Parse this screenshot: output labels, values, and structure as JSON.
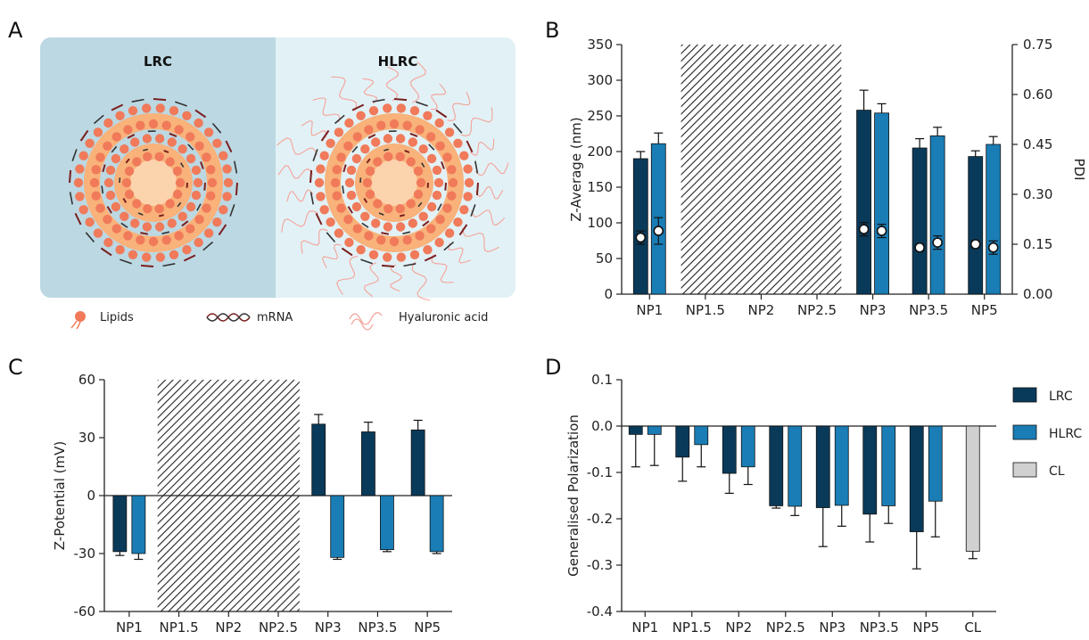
{
  "colors": {
    "LRC": "#0a3a5a",
    "HLRC": "#1a7db5",
    "CL": "#d0d0d0",
    "pdi_marker": "#ffffff",
    "lipid": "#f8b27a",
    "lipid_head": "#f07a5a",
    "mrna": "#7a1f1f",
    "ha": "#f4a39a",
    "panel_left_bg": "#bcd8e3",
    "panel_right_bg": "#e2f1f5"
  },
  "panel_A": {
    "letter": "A",
    "left_title": "LRC",
    "right_title": "HLRC",
    "legend": [
      {
        "icon": "lipid-icon",
        "label": "Lipids"
      },
      {
        "icon": "mrna-icon",
        "label": "mRNA"
      },
      {
        "icon": "hyaluronic-acid-icon",
        "label": "Hyaluronic acid"
      }
    ]
  },
  "panel_B": {
    "letter": "B"
  },
  "panel_C": {
    "letter": "C"
  },
  "panel_D": {
    "letter": "D"
  },
  "legend_D": [
    {
      "name": "LRC",
      "color": "#0a3a5a"
    },
    {
      "name": "HLRC",
      "color": "#1a7db5"
    },
    {
      "name": "CL",
      "color": "#d0d0d0"
    }
  ],
  "chart_data": [
    {
      "panel": "B",
      "type": "bar",
      "categories": [
        "NP1",
        "NP1.5",
        "NP2",
        "NP2.5",
        "NP3",
        "NP3.5",
        "NP5"
      ],
      "ylabel": "Z-Average (nm)",
      "ylim": [
        0,
        350
      ],
      "yticks": [
        "0",
        "50",
        "100",
        "150",
        "200",
        "250",
        "300",
        "350"
      ],
      "y2label": "PDI",
      "y2lim": [
        0,
        0.75
      ],
      "y2ticks": [
        "0.00",
        "0.15",
        "0.30",
        "0.45",
        "0.60",
        "0.75"
      ],
      "hatched_categories": [
        "NP1.5",
        "NP2",
        "NP2.5"
      ],
      "series": [
        {
          "key": "LRC",
          "values": [
            190,
            null,
            null,
            null,
            258,
            205,
            193
          ],
          "errors": [
            10,
            null,
            null,
            null,
            28,
            13,
            8
          ]
        },
        {
          "key": "HLRC",
          "values": [
            211,
            null,
            null,
            null,
            254,
            222,
            210
          ],
          "errors": [
            15,
            null,
            null,
            null,
            13,
            12,
            11
          ]
        }
      ],
      "pdi": [
        {
          "key": "LRC",
          "values": [
            0.17,
            null,
            null,
            null,
            0.195,
            0.14,
            0.15
          ],
          "errors": [
            0.02,
            null,
            null,
            null,
            0.02,
            0.01,
            0.01
          ]
        },
        {
          "key": "HLRC",
          "values": [
            0.19,
            null,
            null,
            null,
            0.19,
            0.155,
            0.14
          ],
          "errors": [
            0.04,
            null,
            null,
            null,
            0.02,
            0.02,
            0.02
          ]
        }
      ]
    },
    {
      "panel": "C",
      "type": "bar",
      "categories": [
        "NP1",
        "NP1.5",
        "NP2",
        "NP2.5",
        "NP3",
        "NP3.5",
        "NP5"
      ],
      "ylabel": "Z-Potential (mV)",
      "ylim": [
        -60,
        60
      ],
      "yticks": [
        "-60",
        "-30",
        "0",
        "30",
        "60"
      ],
      "hatched_categories": [
        "NP1.5",
        "NP2",
        "NP2.5"
      ],
      "series": [
        {
          "key": "LRC",
          "values": [
            -29,
            null,
            null,
            null,
            37,
            33,
            34
          ],
          "errors": [
            2,
            null,
            null,
            null,
            5,
            5,
            5
          ]
        },
        {
          "key": "HLRC",
          "values": [
            -30,
            null,
            null,
            null,
            -32,
            -28,
            -29
          ],
          "errors": [
            3,
            null,
            null,
            null,
            1,
            1,
            1
          ]
        }
      ]
    },
    {
      "panel": "D",
      "type": "bar",
      "categories": [
        "NP1",
        "NP1.5",
        "NP2",
        "NP2.5",
        "NP3",
        "NP3.5",
        "NP5",
        "CL"
      ],
      "ylabel": "Generalised Polarization",
      "ylim": [
        -0.4,
        0.1
      ],
      "yticks": [
        "-0.4",
        "-0.3",
        "-0.2",
        "-0.1",
        "0.0",
        "0.1"
      ],
      "series": [
        {
          "name": "LRC",
          "values": [
            -0.018,
            -0.067,
            -0.102,
            -0.172,
            -0.176,
            -0.19,
            -0.228,
            null
          ],
          "errors": [
            0.07,
            0.052,
            0.043,
            0.005,
            0.084,
            0.06,
            0.08,
            null
          ]
        },
        {
          "name": "HLRC",
          "values": [
            -0.018,
            -0.04,
            -0.088,
            -0.173,
            -0.171,
            -0.172,
            -0.162,
            null
          ],
          "errors": [
            0.067,
            0.048,
            0.038,
            0.02,
            0.045,
            0.038,
            0.077,
            null
          ]
        },
        {
          "name": "CL",
          "values": [
            null,
            null,
            null,
            null,
            null,
            null,
            null,
            -0.27
          ],
          "errors": [
            null,
            null,
            null,
            null,
            null,
            null,
            null,
            0.016
          ]
        }
      ]
    }
  ]
}
